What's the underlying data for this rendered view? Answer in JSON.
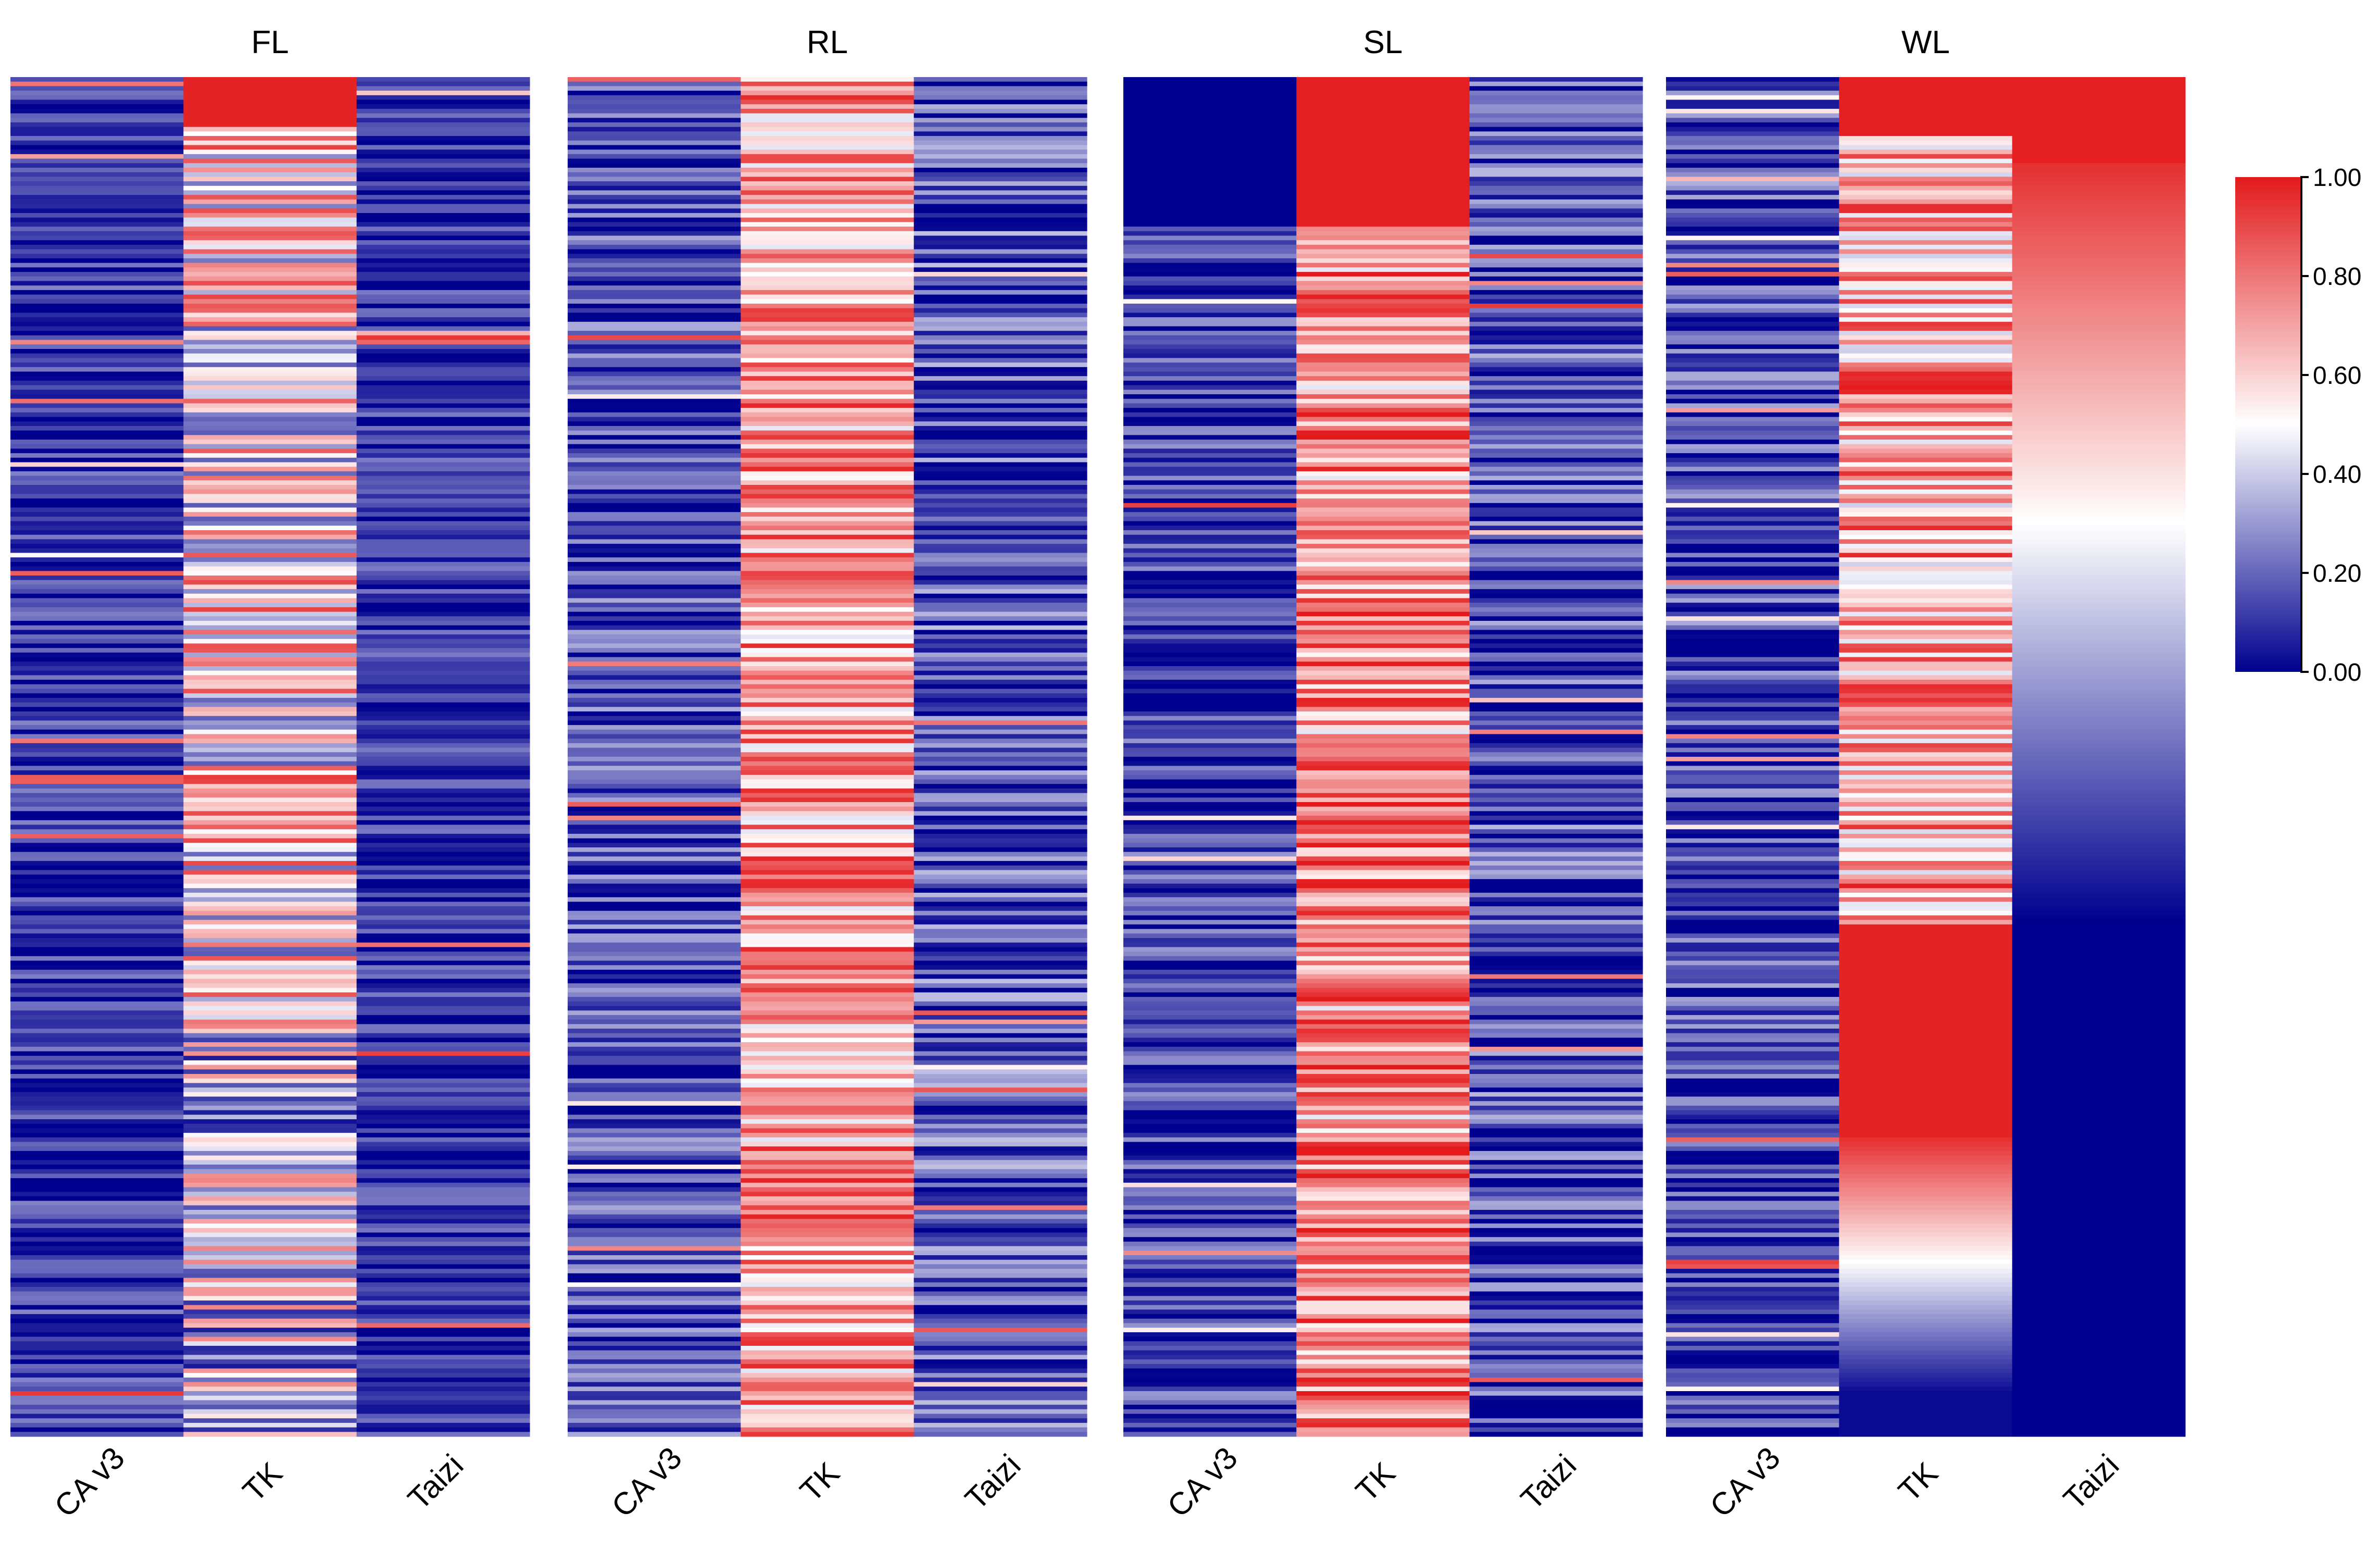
{
  "chart_data": {
    "type": "heatmap",
    "panels": [
      {
        "title": "FL",
        "columns": [
          "CA v3",
          "TK",
          "Taizi"
        ],
        "column_profiles": [
          {
            "base": 0.1,
            "spread": 0.16,
            "top_block": 0.0,
            "top_block_value": 0.02,
            "pattern": "stripes"
          },
          {
            "base": 0.55,
            "spread": 0.38,
            "top_block": 0.035,
            "top_block_value": 0.98,
            "pattern": "stripes_fade_low"
          },
          {
            "base": 0.1,
            "spread": 0.14,
            "top_block": 0.0,
            "top_block_value": 0.05,
            "pattern": "stripes"
          }
        ]
      },
      {
        "title": "RL",
        "columns": [
          "CA v3",
          "TK",
          "Taizi"
        ],
        "column_profiles": [
          {
            "base": 0.14,
            "spread": 0.2,
            "top_block": 0.0,
            "top_block_value": 0.1,
            "pattern": "stripes"
          },
          {
            "base": 0.72,
            "spread": 0.26,
            "top_block": 0.0,
            "top_block_value": 0.8,
            "pattern": "stripes"
          },
          {
            "base": 0.16,
            "spread": 0.22,
            "top_block": 0.0,
            "top_block_value": 0.15,
            "pattern": "stripes"
          }
        ]
      },
      {
        "title": "SL",
        "columns": [
          "CA v3",
          "TK",
          "Taizi"
        ],
        "column_profiles": [
          {
            "base": 0.12,
            "spread": 0.18,
            "top_block": 0.11,
            "top_block_value": 0.0,
            "pattern": "stripes"
          },
          {
            "base": 0.78,
            "spread": 0.26,
            "top_block": 0.11,
            "top_block_value": 0.99,
            "pattern": "stripes"
          },
          {
            "base": 0.14,
            "spread": 0.22,
            "top_block": 0.0,
            "top_block_value": 0.05,
            "pattern": "stripes"
          }
        ]
      },
      {
        "title": "WL",
        "columns": [
          "CA v3",
          "TK",
          "Taizi"
        ],
        "column_profiles": [
          {
            "base": 0.14,
            "spread": 0.2,
            "top_block": 0.0,
            "top_block_value": 0.1,
            "pattern": "stripes_fade_low"
          },
          {
            "base": 0.7,
            "spread": 0.3,
            "top_block": 0.042,
            "top_block_value": 0.99,
            "pattern": "wl_tk"
          },
          {
            "base": 0.0,
            "spread": 0.0,
            "top_block": 0.063,
            "top_block_value": 0.99,
            "pattern": "wl_taizi"
          }
        ]
      }
    ],
    "colorbar": {
      "range": [
        0.0,
        1.0
      ],
      "ticks": [
        0.0,
        0.2,
        0.4,
        0.6,
        0.8,
        1.0
      ],
      "tick_labels": [
        "0.00",
        "0.20",
        "0.40",
        "0.60",
        "0.80",
        "1.00"
      ],
      "stops": [
        {
          "value": 0.0,
          "color": "#00008f"
        },
        {
          "value": 0.5,
          "color": "#ffffff"
        },
        {
          "value": 1.0,
          "color": "#e31a1c"
        }
      ]
    },
    "title": "",
    "xlabel": "",
    "ylabel": ""
  }
}
